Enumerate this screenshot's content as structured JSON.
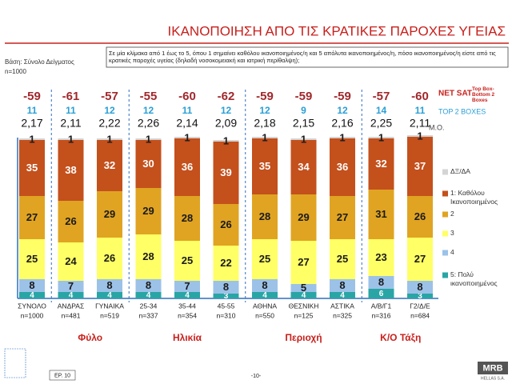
{
  "title": "ΙΚΑΝΟΠΟΙΗΣΗ ΑΠΟ ΤΙΣ ΚΡΑΤΙΚΕΣ ΠΑΡΟΧΕΣ ΥΓΕΙΑΣ",
  "question": "Σε μία κλίμακα από 1 έως το 5, όπου 1 σημαίνει καθόλου ικανοποιημένος/η και 5 απόλυτα ικανοποιημένος/η, πόσο ικανοποιημένος/η είστε από τις κρατικές παροχές υγείας (δηλαδή νοσοκομειακή και ιατρική περίθαλψη);",
  "base": "Βάση: Σύνολο Δείγματος",
  "base_n": "n=1000",
  "footer": {
    "question_no": "ΕΡ. 10",
    "page": "-10-",
    "logo": "MRB",
    "logo_sub": "HELLAS S.A."
  },
  "chart_data": {
    "type": "bar",
    "stacked": true,
    "categories": [
      "ΣΥΝΟΛΟ",
      "ΑΝΔΡΑΣ",
      "ΓΥΝΑΙΚΑ",
      "25-34",
      "35-44",
      "45-55",
      "ΑΘΗΝΑ",
      "ΘΕΣΝΙΚΗ",
      "ΑΣΤΙΚΑ",
      "Α/Β/Γ1",
      "Γ2/Δ/Ε"
    ],
    "sample_sizes": [
      "n=1000",
      "n=481",
      "n=519",
      "n=337",
      "n=354",
      "n=310",
      "n=550",
      "n=125",
      "n=325",
      "n=316",
      "n=684"
    ],
    "ylim": [
      0,
      100
    ],
    "series": [
      {
        "name": "5: Πολύ ικανοποιημένος",
        "color": "#2aa5a5",
        "label_color": "#ffffff",
        "values": [
          4,
          4,
          4,
          4,
          4,
          3,
          4,
          4,
          4,
          6,
          3
        ]
      },
      {
        "name": "4",
        "color": "#9cc2e8",
        "label_color": "#1a1a1a",
        "values": [
          8,
          7,
          8,
          8,
          7,
          8,
          8,
          5,
          8,
          8,
          8
        ]
      },
      {
        "name": "3",
        "color": "#ffff66",
        "label_color": "#1a1a1a",
        "values": [
          25,
          24,
          26,
          28,
          25,
          22,
          25,
          27,
          25,
          23,
          27
        ]
      },
      {
        "name": "2",
        "color": "#e0a422",
        "label_color": "#1a1a1a",
        "values": [
          27,
          26,
          29,
          29,
          28,
          26,
          28,
          29,
          27,
          31,
          26
        ]
      },
      {
        "name": "1: Καθόλου Ικανοποιημένος",
        "color": "#c4501c",
        "label_color": "#ffffff",
        "values": [
          35,
          38,
          32,
          30,
          36,
          39,
          35,
          34,
          36,
          32,
          37
        ]
      },
      {
        "name": "ΔΞ/ΔΑ",
        "color": "#d4d4d4",
        "label_color": "#1a1a1a",
        "values": [
          1,
          1,
          1,
          1,
          1,
          1,
          1,
          1,
          1,
          1,
          1
        ]
      }
    ],
    "net_sat": {
      "label": "NET SAT",
      "note": "Top Box- Bottom 2 Boxes",
      "values": [
        -59,
        -61,
        -57,
        -55,
        -60,
        -62,
        -59,
        -59,
        -59,
        -57,
        -60
      ]
    },
    "top2": {
      "label": "TOP 2 BOXES",
      "values": [
        11,
        11,
        12,
        12,
        11,
        12,
        12,
        9,
        12,
        14,
        11
      ]
    },
    "mean": {
      "label": "Μ.Ο.",
      "values": [
        2.17,
        2.11,
        2.22,
        2.26,
        2.14,
        2.09,
        2.18,
        2.15,
        2.16,
        2.25,
        2.11
      ],
      "value_labels": [
        "2,17",
        "2,11",
        "2,22",
        "2,26",
        "2,14",
        "2,09",
        "2,18",
        "2,15",
        "2,16",
        "2,25",
        "2,11"
      ]
    },
    "groups": [
      {
        "label": "Φύλο",
        "from": 1,
        "to": 2
      },
      {
        "label": "Ηλικία",
        "from": 3,
        "to": 5
      },
      {
        "label": "Περιοχή",
        "from": 6,
        "to": 8
      },
      {
        "label": "Κ/Ο Τάξη",
        "from": 9,
        "to": 10
      }
    ]
  }
}
